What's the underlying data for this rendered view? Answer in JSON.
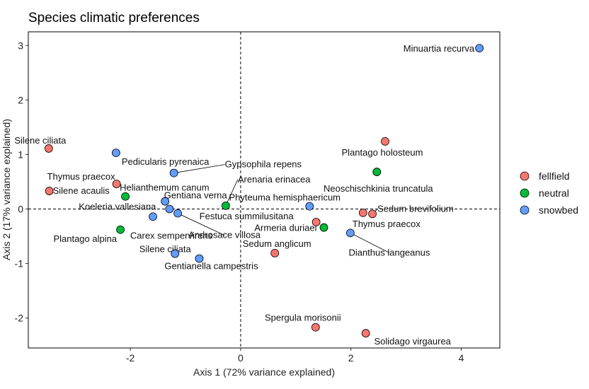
{
  "chart_data": {
    "type": "scatter",
    "title": "Species climatic preferences",
    "xlabel": "Axis 1 (72% variance explained)",
    "ylabel": "Axis 2 (17% variance explained)",
    "xlim": [
      -3.85,
      4.7
    ],
    "ylim": [
      -2.55,
      3.25
    ],
    "xticks": [
      -2,
      0,
      2,
      4
    ],
    "yticks": [
      -2,
      -1,
      0,
      1,
      2,
      3
    ],
    "reference_lines": {
      "x": 0,
      "y": 0,
      "style": "dashed"
    },
    "grid": false,
    "legend_position": "right",
    "series": [
      {
        "name": "fellfield",
        "color": "#F8766D"
      },
      {
        "name": "neutral",
        "color": "#00BA38"
      },
      {
        "name": "snowbed",
        "color": "#619CFF"
      }
    ],
    "points": [
      {
        "label": "Minuartia recurva",
        "group": "snowbed",
        "x": 4.33,
        "y": 2.95
      },
      {
        "label": "Plantago holosteum",
        "group": "fellfield",
        "x": 2.62,
        "y": 1.24
      },
      {
        "label": "Neoschischkinia truncatula",
        "group": "neutral",
        "x": 2.47,
        "y": 0.68
      },
      {
        "label": "Sedum brevifolium",
        "group": "fellfield",
        "x": 2.39,
        "y": -0.09
      },
      {
        "label": "Thymus praecox",
        "group": "fellfield",
        "x": 2.22,
        "y": -0.07
      },
      {
        "label": "Dianthus langeanus",
        "group": "snowbed",
        "x": 1.99,
        "y": -0.44
      },
      {
        "label": "Phyteuma hemisphaericum",
        "group": "snowbed",
        "x": 1.25,
        "y": 0.05
      },
      {
        "label": "Festuca summilusitana",
        "group": "fellfield",
        "x": 1.37,
        "y": -0.24
      },
      {
        "label": "Armeria duriaei",
        "group": "neutral",
        "x": 1.51,
        "y": -0.34
      },
      {
        "label": "Sedum anglicum",
        "group": "fellfield",
        "x": 0.62,
        "y": -0.81
      },
      {
        "label": "Spergula morisonii",
        "group": "fellfield",
        "x": 1.36,
        "y": -2.17
      },
      {
        "label": "Solidago virgaurea",
        "group": "fellfield",
        "x": 2.27,
        "y": -2.28
      },
      {
        "label": "Arenaria erinacea",
        "group": "neutral",
        "x": -0.27,
        "y": 0.06
      },
      {
        "label": "Gypsophila repens",
        "group": "snowbed",
        "x": -1.21,
        "y": 0.66
      },
      {
        "label": "Pedicularis pyrenaica",
        "group": "snowbed",
        "x": -2.26,
        "y": 1.03
      },
      {
        "label": "Silene ciliata",
        "group": "fellfield",
        "x": -3.48,
        "y": 1.11
      },
      {
        "label": "Thymus praecox",
        "group": "fellfield",
        "x": -2.25,
        "y": 0.46
      },
      {
        "label": "Silene acaulis",
        "group": "fellfield",
        "x": -3.47,
        "y": 0.33
      },
      {
        "label": "Helianthemum canum",
        "group": "neutral",
        "x": -2.09,
        "y": 0.23
      },
      {
        "label": "Gentiana verna",
        "group": "snowbed",
        "x": -1.37,
        "y": 0.14
      },
      {
        "label": "Koeleria vallesiana",
        "group": "snowbed",
        "x": -1.29,
        "y": 0.0
      },
      {
        "label": "Androsace villosa",
        "group": "snowbed",
        "x": -1.14,
        "y": -0.08
      },
      {
        "label": "Carex sempervirens",
        "group": "snowbed",
        "x": -1.59,
        "y": -0.14
      },
      {
        "label": "Plantago alpina",
        "group": "neutral",
        "x": -2.18,
        "y": -0.38
      },
      {
        "label": "Silene ciliata",
        "group": "snowbed",
        "x": -1.19,
        "y": -0.82
      },
      {
        "label": "Gentianella campestris",
        "group": "snowbed",
        "x": -0.75,
        "y": -0.91
      }
    ]
  }
}
